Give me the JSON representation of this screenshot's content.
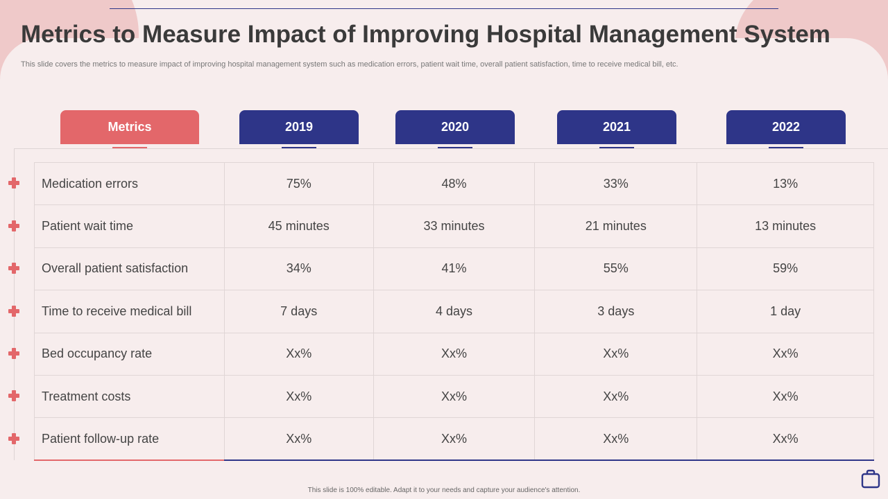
{
  "title": "Metrics to Measure Impact of Improving Hospital Management System",
  "subtitle": "This slide covers the metrics to measure impact of improving hospital management system such as medication errors, patient wait time, overall patient satisfaction, time to receive medical bill, etc.",
  "headers": {
    "metrics": "Metrics",
    "years": [
      "2019",
      "2020",
      "2021",
      "2022"
    ]
  },
  "rows": [
    {
      "metric": "Medication errors",
      "values": [
        "75%",
        "48%",
        "33%",
        "13%"
      ]
    },
    {
      "metric": "Patient wait time",
      "values": [
        "45 minutes",
        "33 minutes",
        "21 minutes",
        "13 minutes"
      ]
    },
    {
      "metric": "Overall patient satisfaction",
      "values": [
        "34%",
        "41%",
        "55%",
        "59%"
      ]
    },
    {
      "metric": "Time to receive medical bill",
      "values": [
        "7 days",
        "4 days",
        "3 days",
        "1 day"
      ]
    },
    {
      "metric": "Bed occupancy rate",
      "values": [
        "Xx%",
        "Xx%",
        "Xx%",
        "Xx%"
      ]
    },
    {
      "metric": "Treatment costs",
      "values": [
        "Xx%",
        "Xx%",
        "Xx%",
        "Xx%"
      ]
    },
    {
      "metric": "Patient follow-up rate",
      "values": [
        "Xx%",
        "Xx%",
        "Xx%",
        "Xx%"
      ]
    }
  ],
  "footer": "This slide is 100% editable. Adapt it to your needs and capture your audience's attention.",
  "icons": {
    "row_marker": "plus-icon",
    "corner": "bag-icon"
  },
  "colors": {
    "accent_red": "#e3676a",
    "accent_navy": "#2e3588",
    "background": "#f7eded"
  }
}
